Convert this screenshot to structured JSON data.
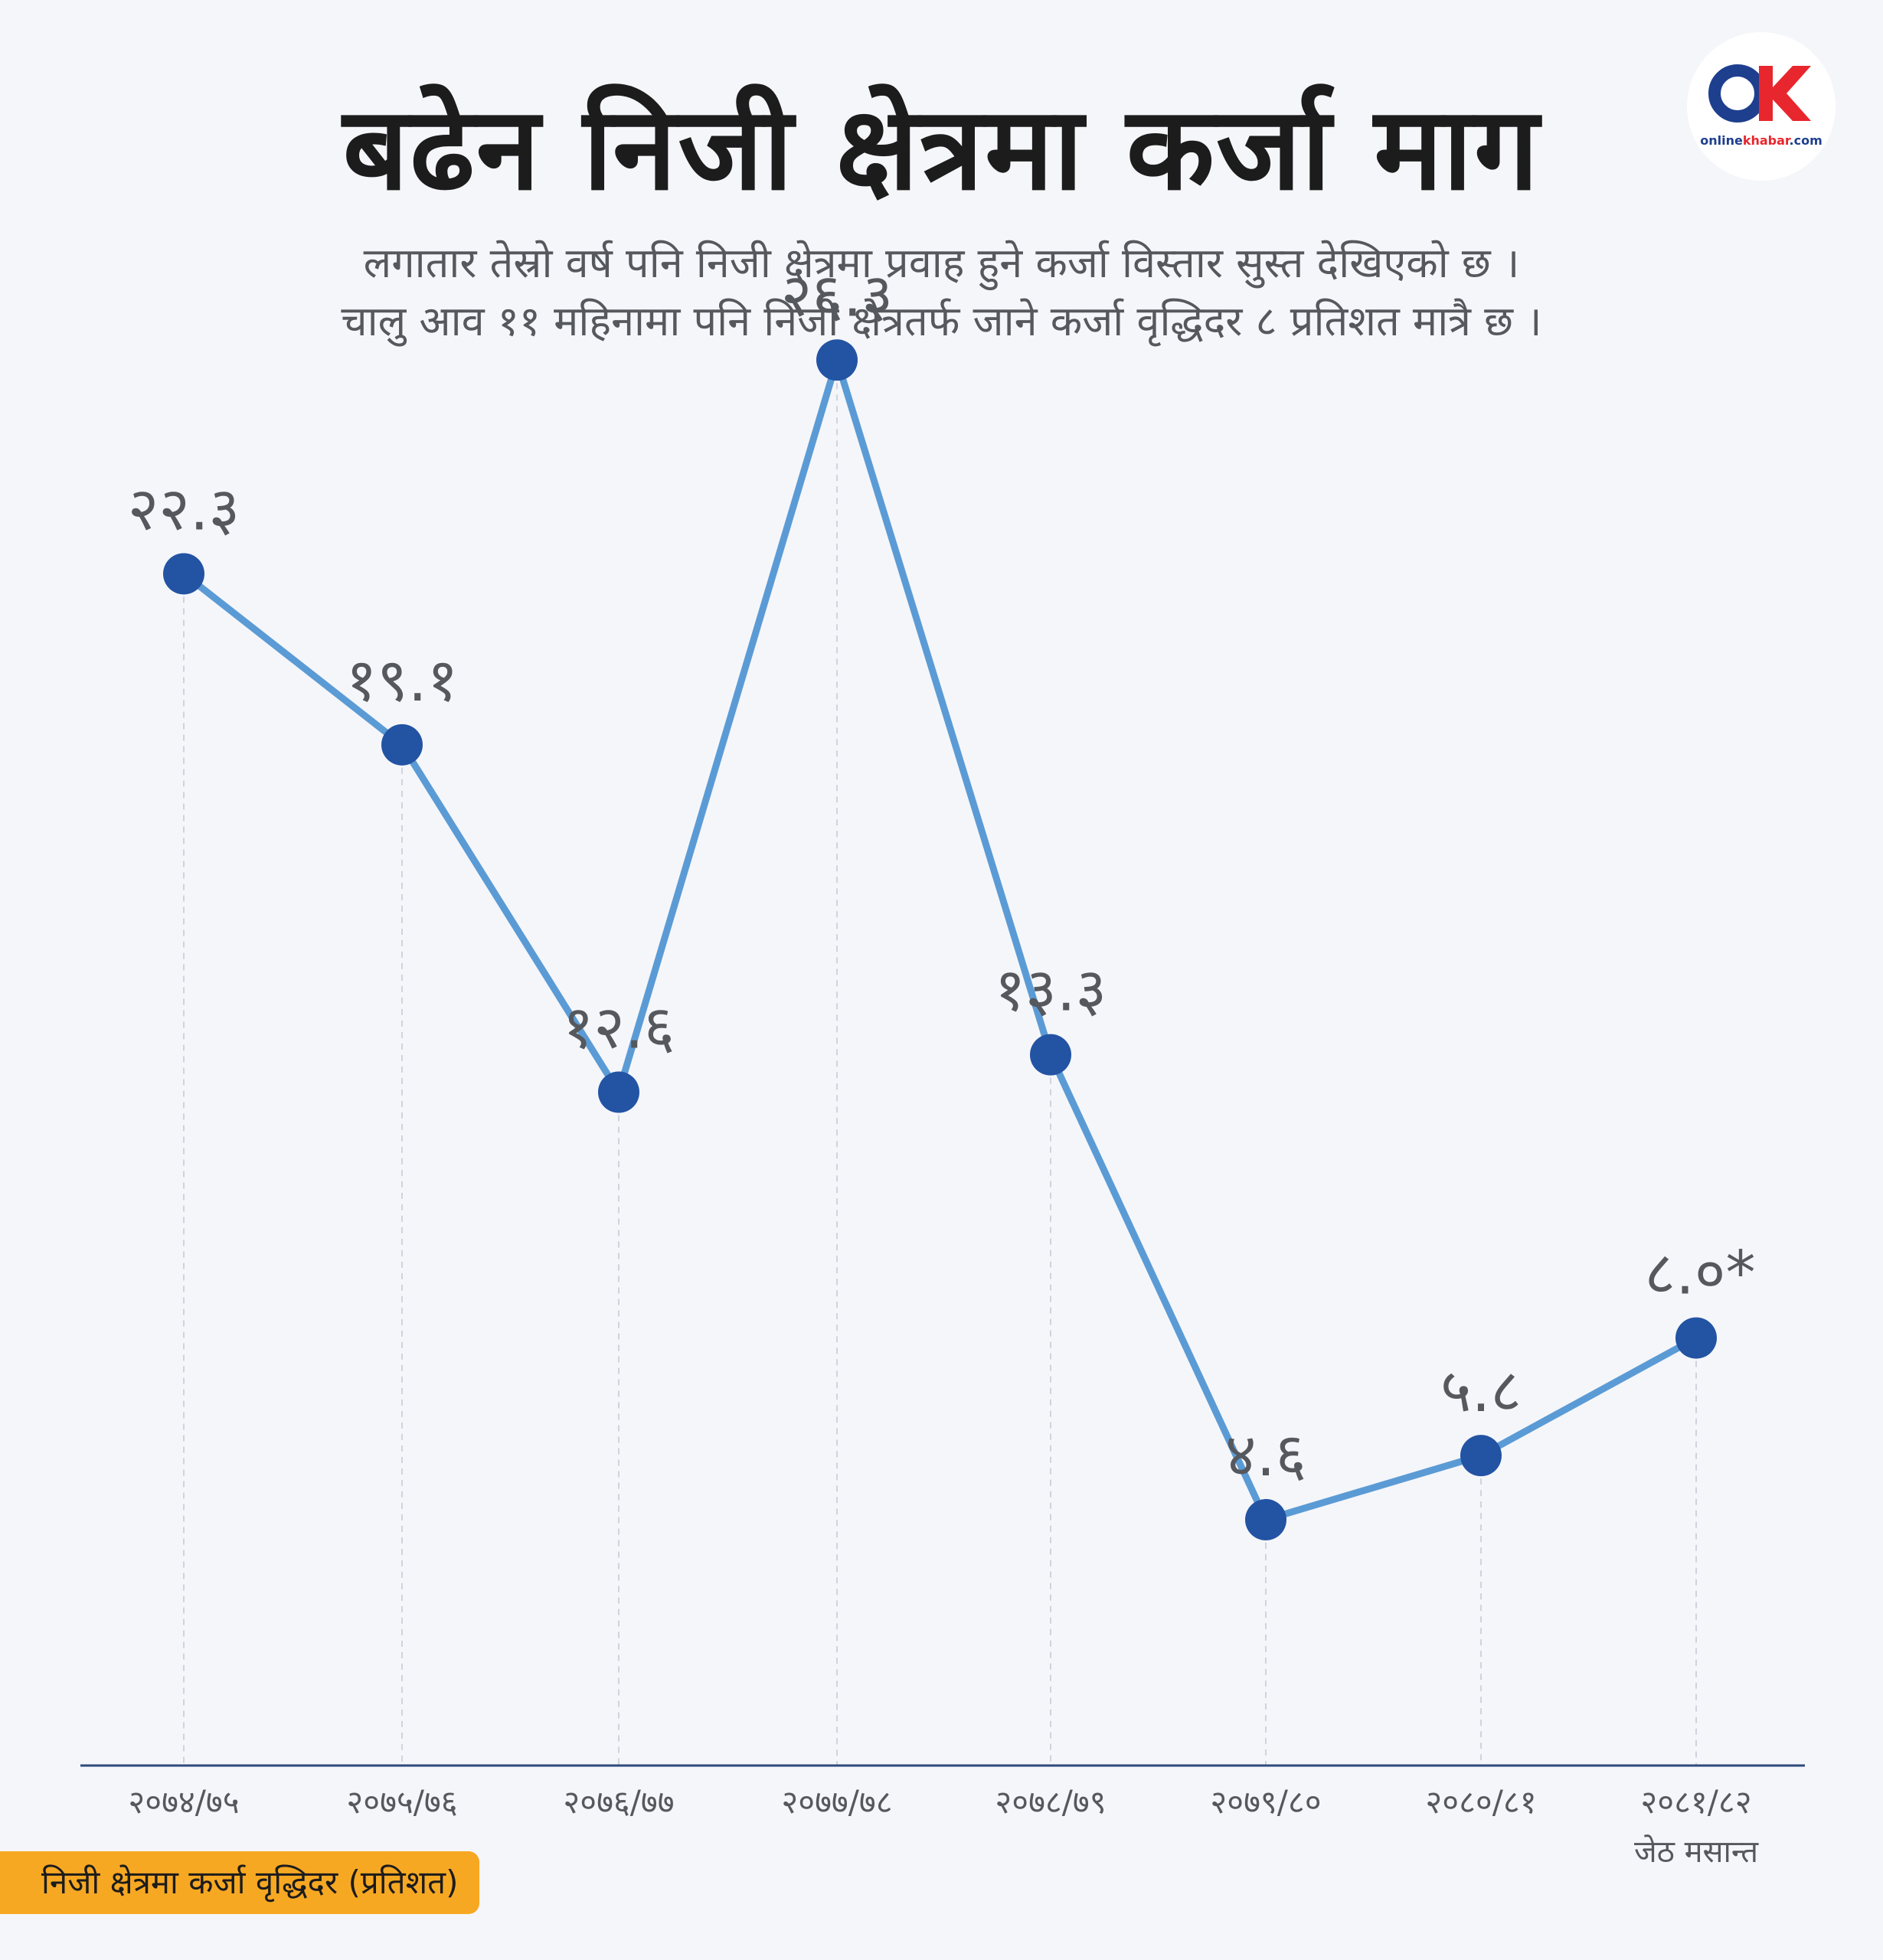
{
  "title": "बढेन निजी क्षेत्रमा कर्जा माग",
  "subtitle": {
    "line1": "लगातार तेस्रो वर्ष पनि निजी क्षेत्रमा प्रवाह हुने कर्जा विस्तार सुस्त देखिएको छ ।",
    "line2": "चालु आव ११ महिनामा पनि निजी क्षेत्रतर्फ जाने कर्जा वृद्धिदर ८ प्रतिशत मात्रै छ ।"
  },
  "logo": {
    "icon": "onlinekhabar-ok-logo",
    "text_main": "online",
    "text_accent": "khabar",
    "text_suffix": ".com"
  },
  "legend": {
    "label": "निजी क्षेत्रमा कर्जा वृद्धिदर  (प्रतिशत)"
  },
  "colors": {
    "line": "#5b9bd5",
    "point": "#2353a3",
    "axis": "#2d4a7a",
    "grid": "#cfd3dc",
    "legend_bg": "#f7a823",
    "text": "#55585d"
  },
  "chart_data": {
    "type": "line",
    "categories": [
      "२०७४/७५",
      "२०७५/७६",
      "२०७६/७७",
      "२०७७/७८",
      "२०७८/७९",
      "२०७९/८०",
      "२०८०/८१",
      "२०८१/८२"
    ],
    "category_sublabels": [
      "",
      "",
      "",
      "",
      "",
      "",
      "",
      "जेठ मसान्त"
    ],
    "values": [
      22.3,
      19.1,
      12.6,
      26.3,
      13.3,
      4.6,
      5.8,
      8.0
    ],
    "data_labels": [
      "२२.३",
      "१९.१",
      "१२.६",
      "२६.३",
      "१३.३",
      "४.६",
      "५.८",
      "८.०*"
    ],
    "ylim": [
      0,
      30
    ],
    "grid": "vertical dashed",
    "legend_position": "bottom-left"
  }
}
